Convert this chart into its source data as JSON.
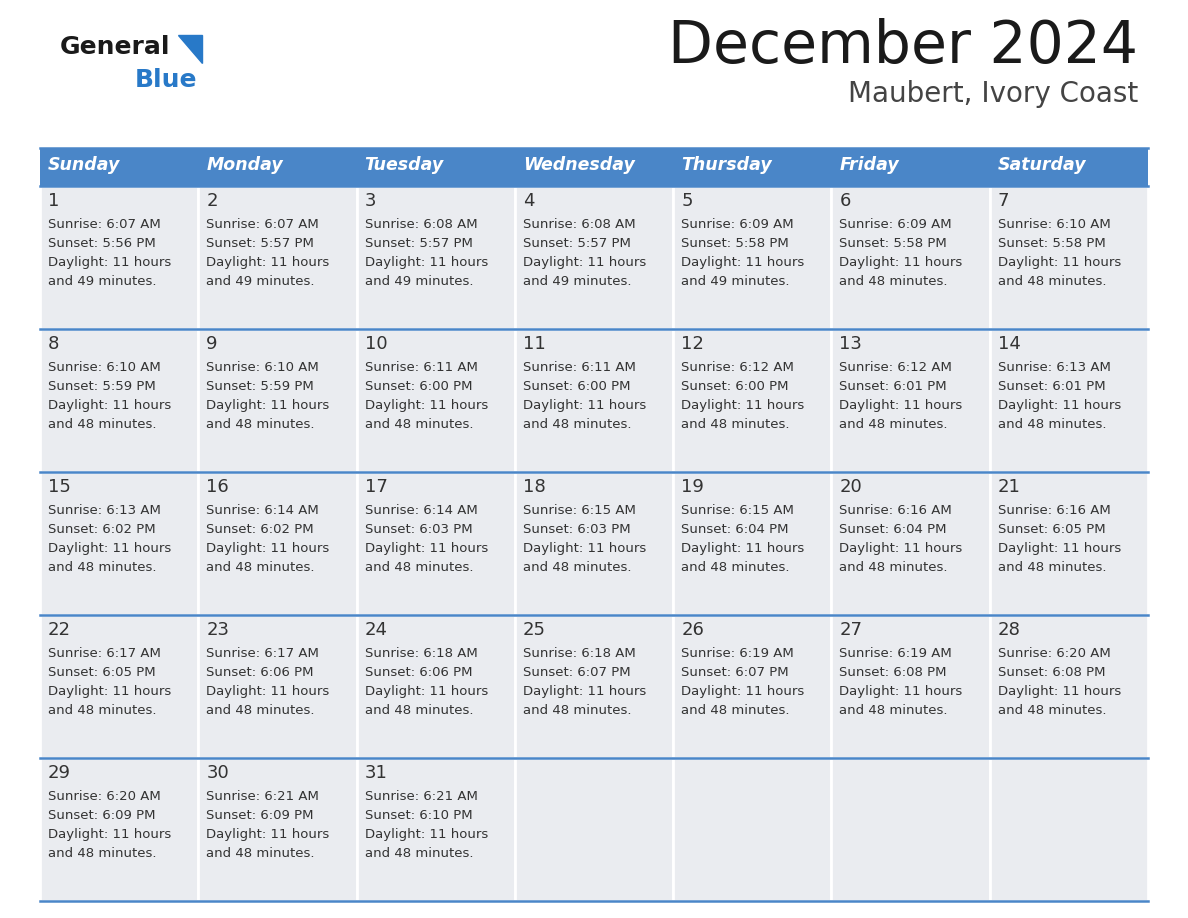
{
  "title": "December 2024",
  "subtitle": "Maubert, Ivory Coast",
  "days_of_week": [
    "Sunday",
    "Monday",
    "Tuesday",
    "Wednesday",
    "Thursday",
    "Friday",
    "Saturday"
  ],
  "header_bg_color": "#4A86C8",
  "header_text_color": "#FFFFFF",
  "row_bg_color": "#EAECF0",
  "cell_border_color": "#4A86C8",
  "row_separator_color": "#FFFFFF",
  "title_color": "#1a1a1a",
  "subtitle_color": "#444444",
  "day_number_color": "#333333",
  "cell_text_color": "#333333",
  "logo_general_color": "#1a1a1a",
  "logo_blue_color": "#2879C8",
  "weeks": [
    [
      {
        "day": 1,
        "sunrise": "6:07 AM",
        "sunset": "5:56 PM",
        "daylight_hours": 11,
        "daylight_minutes": 49
      },
      {
        "day": 2,
        "sunrise": "6:07 AM",
        "sunset": "5:57 PM",
        "daylight_hours": 11,
        "daylight_minutes": 49
      },
      {
        "day": 3,
        "sunrise": "6:08 AM",
        "sunset": "5:57 PM",
        "daylight_hours": 11,
        "daylight_minutes": 49
      },
      {
        "day": 4,
        "sunrise": "6:08 AM",
        "sunset": "5:57 PM",
        "daylight_hours": 11,
        "daylight_minutes": 49
      },
      {
        "day": 5,
        "sunrise": "6:09 AM",
        "sunset": "5:58 PM",
        "daylight_hours": 11,
        "daylight_minutes": 49
      },
      {
        "day": 6,
        "sunrise": "6:09 AM",
        "sunset": "5:58 PM",
        "daylight_hours": 11,
        "daylight_minutes": 48
      },
      {
        "day": 7,
        "sunrise": "6:10 AM",
        "sunset": "5:58 PM",
        "daylight_hours": 11,
        "daylight_minutes": 48
      }
    ],
    [
      {
        "day": 8,
        "sunrise": "6:10 AM",
        "sunset": "5:59 PM",
        "daylight_hours": 11,
        "daylight_minutes": 48
      },
      {
        "day": 9,
        "sunrise": "6:10 AM",
        "sunset": "5:59 PM",
        "daylight_hours": 11,
        "daylight_minutes": 48
      },
      {
        "day": 10,
        "sunrise": "6:11 AM",
        "sunset": "6:00 PM",
        "daylight_hours": 11,
        "daylight_minutes": 48
      },
      {
        "day": 11,
        "sunrise": "6:11 AM",
        "sunset": "6:00 PM",
        "daylight_hours": 11,
        "daylight_minutes": 48
      },
      {
        "day": 12,
        "sunrise": "6:12 AM",
        "sunset": "6:00 PM",
        "daylight_hours": 11,
        "daylight_minutes": 48
      },
      {
        "day": 13,
        "sunrise": "6:12 AM",
        "sunset": "6:01 PM",
        "daylight_hours": 11,
        "daylight_minutes": 48
      },
      {
        "day": 14,
        "sunrise": "6:13 AM",
        "sunset": "6:01 PM",
        "daylight_hours": 11,
        "daylight_minutes": 48
      }
    ],
    [
      {
        "day": 15,
        "sunrise": "6:13 AM",
        "sunset": "6:02 PM",
        "daylight_hours": 11,
        "daylight_minutes": 48
      },
      {
        "day": 16,
        "sunrise": "6:14 AM",
        "sunset": "6:02 PM",
        "daylight_hours": 11,
        "daylight_minutes": 48
      },
      {
        "day": 17,
        "sunrise": "6:14 AM",
        "sunset": "6:03 PM",
        "daylight_hours": 11,
        "daylight_minutes": 48
      },
      {
        "day": 18,
        "sunrise": "6:15 AM",
        "sunset": "6:03 PM",
        "daylight_hours": 11,
        "daylight_minutes": 48
      },
      {
        "day": 19,
        "sunrise": "6:15 AM",
        "sunset": "6:04 PM",
        "daylight_hours": 11,
        "daylight_minutes": 48
      },
      {
        "day": 20,
        "sunrise": "6:16 AM",
        "sunset": "6:04 PM",
        "daylight_hours": 11,
        "daylight_minutes": 48
      },
      {
        "day": 21,
        "sunrise": "6:16 AM",
        "sunset": "6:05 PM",
        "daylight_hours": 11,
        "daylight_minutes": 48
      }
    ],
    [
      {
        "day": 22,
        "sunrise": "6:17 AM",
        "sunset": "6:05 PM",
        "daylight_hours": 11,
        "daylight_minutes": 48
      },
      {
        "day": 23,
        "sunrise": "6:17 AM",
        "sunset": "6:06 PM",
        "daylight_hours": 11,
        "daylight_minutes": 48
      },
      {
        "day": 24,
        "sunrise": "6:18 AM",
        "sunset": "6:06 PM",
        "daylight_hours": 11,
        "daylight_minutes": 48
      },
      {
        "day": 25,
        "sunrise": "6:18 AM",
        "sunset": "6:07 PM",
        "daylight_hours": 11,
        "daylight_minutes": 48
      },
      {
        "day": 26,
        "sunrise": "6:19 AM",
        "sunset": "6:07 PM",
        "daylight_hours": 11,
        "daylight_minutes": 48
      },
      {
        "day": 27,
        "sunrise": "6:19 AM",
        "sunset": "6:08 PM",
        "daylight_hours": 11,
        "daylight_minutes": 48
      },
      {
        "day": 28,
        "sunrise": "6:20 AM",
        "sunset": "6:08 PM",
        "daylight_hours": 11,
        "daylight_minutes": 48
      }
    ],
    [
      {
        "day": 29,
        "sunrise": "6:20 AM",
        "sunset": "6:09 PM",
        "daylight_hours": 11,
        "daylight_minutes": 48
      },
      {
        "day": 30,
        "sunrise": "6:21 AM",
        "sunset": "6:09 PM",
        "daylight_hours": 11,
        "daylight_minutes": 48
      },
      {
        "day": 31,
        "sunrise": "6:21 AM",
        "sunset": "6:10 PM",
        "daylight_hours": 11,
        "daylight_minutes": 48
      },
      null,
      null,
      null,
      null
    ]
  ]
}
